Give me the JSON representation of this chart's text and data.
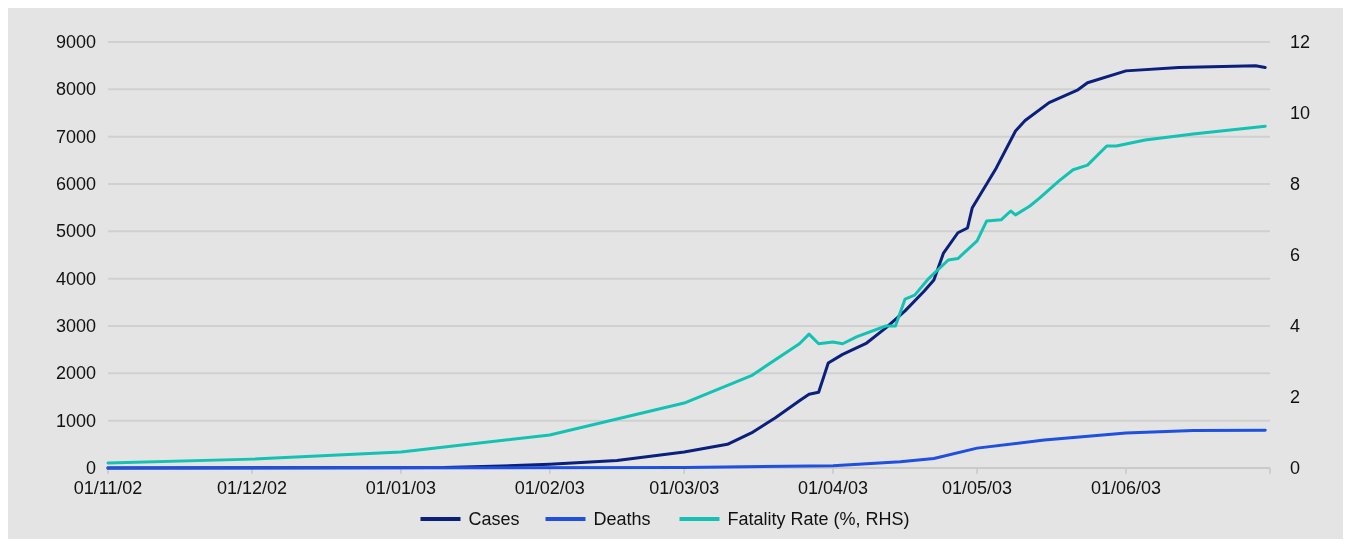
{
  "chart_data": {
    "type": "line",
    "xlim": [
      "2002-11-01",
      "2003-07-01"
    ],
    "xticks": [
      {
        "value": "2002-11-01",
        "label": "01/11/02"
      },
      {
        "value": "2002-12-01",
        "label": "01/12/02"
      },
      {
        "value": "2003-01-01",
        "label": "01/01/03"
      },
      {
        "value": "2003-02-01",
        "label": "01/02/03"
      },
      {
        "value": "2003-03-01",
        "label": "01/03/03"
      },
      {
        "value": "2003-04-01",
        "label": "01/04/03"
      },
      {
        "value": "2003-05-01",
        "label": "01/05/03"
      },
      {
        "value": "2003-06-01",
        "label": "01/06/03"
      },
      {
        "value": "2003-07-01",
        "label": null
      }
    ],
    "ylim": [
      0,
      9000
    ],
    "yticks": [
      0,
      1000,
      2000,
      3000,
      4000,
      5000,
      6000,
      7000,
      8000,
      9000
    ],
    "y2lim": [
      0,
      12
    ],
    "y2ticks": [
      0,
      2,
      4,
      6,
      8,
      10,
      12
    ],
    "grid": "y",
    "legend": "bottom",
    "series": [
      {
        "name": "Cases",
        "color": "#0b1f7d",
        "x": [
          "2002-11-01",
          "2003-01-10",
          "2003-01-22",
          "2003-02-01",
          "2003-02-15",
          "2003-03-01",
          "2003-03-10",
          "2003-03-15",
          "2003-03-20",
          "2003-03-25",
          "2003-03-27",
          "2003-03-29",
          "2003-03-31",
          "2003-04-03",
          "2003-04-08",
          "2003-04-12",
          "2003-04-16",
          "2003-04-20",
          "2003-04-22",
          "2003-04-24",
          "2003-04-27",
          "2003-04-29",
          "2003-04-30",
          "2003-05-05",
          "2003-05-09",
          "2003-05-11",
          "2003-05-16",
          "2003-05-22",
          "2003-05-24",
          "2003-06-01",
          "2003-06-12",
          "2003-06-28",
          "2003-06-30"
        ],
        "values": [
          0,
          10,
          40,
          80,
          160,
          340,
          500,
          740,
          1060,
          1420,
          1560,
          1600,
          2220,
          2400,
          2640,
          2960,
          3320,
          3740,
          3970,
          4540,
          4970,
          5070,
          5500,
          6340,
          7120,
          7340,
          7720,
          7990,
          8140,
          8390,
          8460,
          8500,
          8460
        ]
      },
      {
        "name": "Deaths",
        "color": "#1f50e0",
        "x": [
          "2002-11-01",
          "2003-03-01",
          "2003-04-01",
          "2003-04-15",
          "2003-04-22",
          "2003-05-01",
          "2003-05-15",
          "2003-06-01",
          "2003-06-15",
          "2003-06-30"
        ],
        "values": [
          0,
          10,
          50,
          130,
          200,
          420,
          590,
          740,
          790,
          800
        ]
      },
      {
        "name": "Fatality Rate (%, RHS)",
        "color": "#13c2b3",
        "axis": "y2",
        "x": [
          "2002-11-01",
          "2002-12-01",
          "2003-01-01",
          "2003-02-01",
          "2003-03-01",
          "2003-03-15",
          "2003-03-25",
          "2003-03-27",
          "2003-03-29",
          "2003-04-01",
          "2003-04-03",
          "2003-04-06",
          "2003-04-12",
          "2003-04-14",
          "2003-04-16",
          "2003-04-18",
          "2003-04-21",
          "2003-04-25",
          "2003-04-27",
          "2003-05-01",
          "2003-05-03",
          "2003-05-06",
          "2003-05-08",
          "2003-05-09",
          "2003-05-12",
          "2003-05-14",
          "2003-05-18",
          "2003-05-21",
          "2003-05-24",
          "2003-05-28",
          "2003-05-30",
          "2003-06-05",
          "2003-06-15",
          "2003-06-30"
        ],
        "values": [
          0.14,
          0.25,
          0.45,
          0.93,
          1.83,
          2.6,
          3.5,
          3.77,
          3.5,
          3.55,
          3.5,
          3.7,
          4.0,
          4.0,
          4.76,
          4.87,
          5.35,
          5.86,
          5.9,
          6.4,
          6.96,
          6.99,
          7.24,
          7.13,
          7.38,
          7.6,
          8.08,
          8.4,
          8.53,
          9.07,
          9.07,
          9.24,
          9.41,
          9.63
        ]
      }
    ]
  }
}
